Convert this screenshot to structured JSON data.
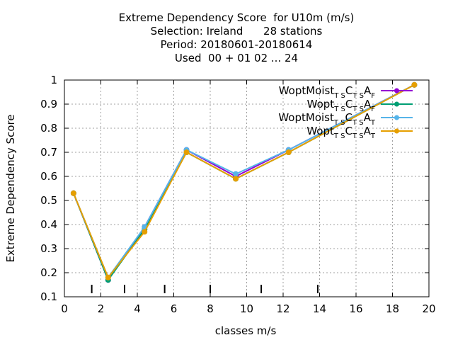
{
  "title_lines": [
    "Extreme Dependency Score  for U10m (m/s)",
    "Selection: Ireland      28 stations",
    "Period: 20180601-20180614",
    "Used  00 + 01 02 ... 24"
  ],
  "chart_data": {
    "type": "line",
    "xlabel": "classes m/s",
    "ylabel": "Extreme Dependency Score",
    "xlim": [
      0,
      20
    ],
    "ylim": [
      0.1,
      1
    ],
    "x_ticks": [
      0,
      2,
      4,
      6,
      8,
      10,
      12,
      14,
      16,
      18,
      20
    ],
    "y_ticks": [
      0.1,
      0.2,
      0.3,
      0.4,
      0.5,
      0.6,
      0.7,
      0.8,
      0.9,
      1
    ],
    "y_tick_labels": [
      "0.1",
      "0.2",
      "0.3",
      "0.4",
      "0.5",
      "0.6",
      "0.7",
      "0.8",
      "0.9",
      "1"
    ],
    "grid": true,
    "legend_position": "top-right",
    "class_boundaries": [
      1.5,
      3.3,
      5.5,
      8,
      10.8,
      13.9
    ],
    "x": [
      0.5,
      2.4,
      4.4,
      6.7,
      9.4,
      12.3,
      19.2
    ],
    "series": [
      {
        "name": "WoptMoist",
        "sub1": "T S",
        "mid1": "C",
        "sub2": "T S",
        "mid2": "A",
        "sub3": "F",
        "color": "#9400d3",
        "marker": "circle",
        "values": [
          0.53,
          0.17,
          0.39,
          0.71,
          0.6,
          0.71,
          0.98
        ]
      },
      {
        "name": "Wopt",
        "sub1": "T S",
        "mid1": "C",
        "sub2": "T S",
        "mid2": "A",
        "sub3": "F",
        "color": "#009e73",
        "marker": "circle",
        "values": [
          0.53,
          0.17,
          0.38,
          0.7,
          0.59,
          0.7,
          0.98
        ]
      },
      {
        "name": "WoptMoist",
        "sub1": "T S",
        "mid1": "C",
        "sub2": "T S",
        "mid2": "A",
        "sub3": "T",
        "color": "#56b4e9",
        "marker": "circle",
        "values": [
          0.53,
          0.18,
          0.39,
          0.71,
          0.61,
          0.71,
          0.98
        ]
      },
      {
        "name": "Wopt",
        "sub1": "T S",
        "mid1": "C",
        "sub2": "T S",
        "mid2": "A",
        "sub3": "T",
        "color": "#e69f00",
        "marker": "circle",
        "values": [
          0.53,
          0.18,
          0.37,
          0.7,
          0.59,
          0.7,
          0.98
        ]
      }
    ]
  }
}
